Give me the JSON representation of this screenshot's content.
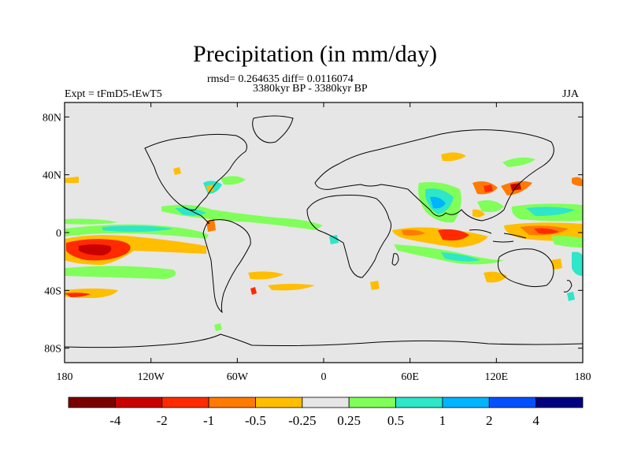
{
  "title": "Precipitation (in mm/day)",
  "stats_line": "rmsd= 0.264635 diff= 0.0116074",
  "period_line": "3380kyr BP - 3380kyr BP",
  "experiment_label": "Expt = tFmD5-tEwT5",
  "season_label": "JJA",
  "map": {
    "lon_range": [
      -180,
      180
    ],
    "lat_range": [
      -90,
      90
    ],
    "background_color": "#e6e6e6",
    "lat_ticks": [
      {
        "value": 80,
        "label": "80N"
      },
      {
        "value": 40,
        "label": "40N"
      },
      {
        "value": 0,
        "label": "0"
      },
      {
        "value": -40,
        "label": "40S"
      },
      {
        "value": -80,
        "label": "80S"
      }
    ],
    "lon_ticks": [
      {
        "value": -180,
        "label": "180"
      },
      {
        "value": -120,
        "label": "120W"
      },
      {
        "value": -60,
        "label": "60W"
      },
      {
        "value": 0,
        "label": "0"
      },
      {
        "value": 60,
        "label": "60E"
      },
      {
        "value": 120,
        "label": "120E"
      },
      {
        "value": 180,
        "label": "180"
      }
    ]
  },
  "colorbar": {
    "colors": [
      "#7a0000",
      "#c80000",
      "#ff2a00",
      "#ff7a00",
      "#ffbe00",
      "#e6e6e6",
      "#80ff5a",
      "#2ee6c8",
      "#00b4ff",
      "#0050ff",
      "#000080"
    ],
    "boundary_labels": [
      "-4",
      "-2",
      "-1",
      "-0.5",
      "-0.25",
      "0.25",
      "0.5",
      "1",
      "2",
      "4"
    ]
  }
}
